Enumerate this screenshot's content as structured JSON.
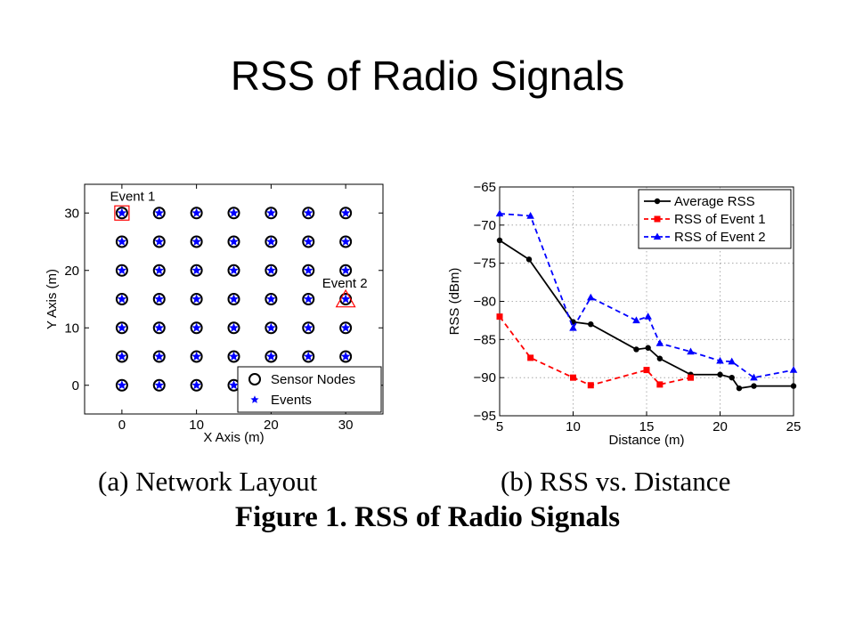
{
  "slide": {
    "title": "RSS of Radio Signals"
  },
  "captions": {
    "a": "(a)  Network Layout",
    "b": "(b)  RSS vs. Distance",
    "figure": "Figure 1.  RSS of Radio Signals"
  },
  "chart_data": [
    {
      "type": "scatter",
      "xlabel": "X Axis (m)",
      "ylabel": "Y Axis (m)",
      "xlim": [
        -5,
        35
      ],
      "ylim": [
        -5,
        35
      ],
      "xticks": [
        0,
        10,
        20,
        30
      ],
      "yticks": [
        0,
        10,
        20,
        30
      ],
      "grid": false,
      "legend": "bottom-right",
      "series": [
        {
          "name": "Sensor Nodes",
          "marker": "circle-open",
          "color": "#000000",
          "grid_x": [
            0,
            5,
            10,
            15,
            20,
            25,
            30
          ],
          "grid_y": [
            0,
            5,
            10,
            15,
            20,
            25,
            30
          ]
        },
        {
          "name": "Events",
          "marker": "star",
          "color": "#0000ff",
          "grid_x": [
            0,
            5,
            10,
            15,
            20,
            25,
            30
          ],
          "grid_y": [
            0,
            5,
            10,
            15,
            20,
            25,
            30
          ]
        }
      ],
      "annotations": [
        {
          "text": "Event 1",
          "x": 0,
          "y": 30,
          "marker": "square",
          "color": "#ff0000"
        },
        {
          "text": "Event 2",
          "x": 30,
          "y": 15,
          "marker": "triangle",
          "color": "#ff0000"
        }
      ]
    },
    {
      "type": "line",
      "xlabel": "Distance (m)",
      "ylabel": "RSS (dBm)",
      "xlim": [
        5,
        25
      ],
      "ylim": [
        -95,
        -65
      ],
      "xticks": [
        5,
        10,
        15,
        20,
        25
      ],
      "yticks": [
        -65,
        -70,
        -75,
        -80,
        -85,
        -90,
        -95
      ],
      "ytick_labels": [
        "−65",
        "−70",
        "−75",
        "−80",
        "−85",
        "−90",
        "−95"
      ],
      "grid": true,
      "legend": "top-right",
      "series": [
        {
          "name": "Average RSS",
          "color": "#000000",
          "style": "solid",
          "marker": "dot",
          "x": [
            5,
            7,
            10,
            11.2,
            14.3,
            15.1,
            15.9,
            18,
            20,
            20.8,
            21.3,
            22.3,
            25
          ],
          "y": [
            -72,
            -74.5,
            -82.7,
            -83,
            -86.3,
            -86.1,
            -87.5,
            -89.6,
            -89.6,
            -90,
            -91.4,
            -91.1,
            -91.1
          ]
        },
        {
          "name": "RSS of Event 1",
          "color": "#ff0000",
          "style": "dashed",
          "marker": "square",
          "x": [
            5,
            7.1,
            10,
            11.2,
            15,
            15.9,
            18
          ],
          "y": [
            -82,
            -87.4,
            -90,
            -91,
            -89,
            -90.9,
            -90
          ]
        },
        {
          "name": "RSS of Event 2",
          "color": "#0000ff",
          "style": "dashed",
          "marker": "triangle",
          "x": [
            5,
            7.1,
            10,
            11.2,
            14.3,
            15.1,
            15.9,
            18,
            20,
            20.8,
            22.3,
            25
          ],
          "y": [
            -68.5,
            -68.8,
            -83.5,
            -79.5,
            -82.5,
            -82,
            -85.5,
            -86.6,
            -87.8,
            -87.9,
            -90,
            -89
          ]
        }
      ]
    }
  ]
}
